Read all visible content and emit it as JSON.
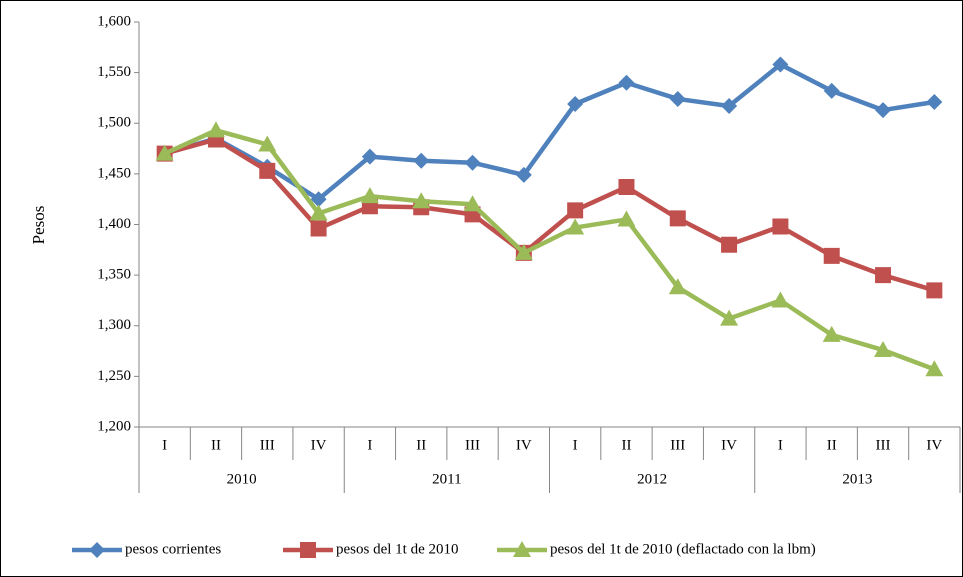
{
  "chart_data": {
    "type": "line",
    "y_label": "Pesos",
    "categories": [
      "I",
      "II",
      "III",
      "IV",
      "I",
      "II",
      "III",
      "IV",
      "I",
      "II",
      "III",
      "IV",
      "I",
      "II",
      "III",
      "IV"
    ],
    "groups": [
      "2010",
      "2011",
      "2012",
      "2013"
    ],
    "ylim": [
      1200,
      1600
    ],
    "yticks": [
      {
        "value": 1200,
        "label": "1,200"
      },
      {
        "value": 1250,
        "label": "1,250"
      },
      {
        "value": 1300,
        "label": "1,300"
      },
      {
        "value": 1350,
        "label": "1,350"
      },
      {
        "value": 1400,
        "label": "1,400"
      },
      {
        "value": 1450,
        "label": "1,450"
      },
      {
        "value": 1500,
        "label": "1,500"
      },
      {
        "value": 1550,
        "label": "1,550"
      },
      {
        "value": 1600,
        "label": "1,600"
      }
    ],
    "grid": false,
    "legend": "bottom",
    "series": [
      {
        "name": "pesos corrientes",
        "color": "#4f81bd",
        "marker": "diamond",
        "values": [
          1470,
          1485,
          1457,
          1425,
          1467,
          1463,
          1461,
          1449,
          1519,
          1540,
          1524,
          1517,
          1558,
          1532,
          1513,
          1521
        ]
      },
      {
        "name": "pesos del 1t de 2010",
        "color": "#c0504d",
        "marker": "square",
        "values": [
          1470,
          1484,
          1453,
          1396,
          1418,
          1417,
          1410,
          1372,
          1414,
          1437,
          1406,
          1380,
          1398,
          1369,
          1350,
          1335
        ]
      },
      {
        "name": "pesos del 1t de 2010 (deflactado con la lbm)",
        "color": "#9bbb59",
        "marker": "triangle",
        "values": [
          1470,
          1493,
          1479,
          1411,
          1428,
          1423,
          1420,
          1372,
          1397,
          1405,
          1338,
          1307,
          1325,
          1291,
          1276,
          1257
        ]
      }
    ]
  }
}
